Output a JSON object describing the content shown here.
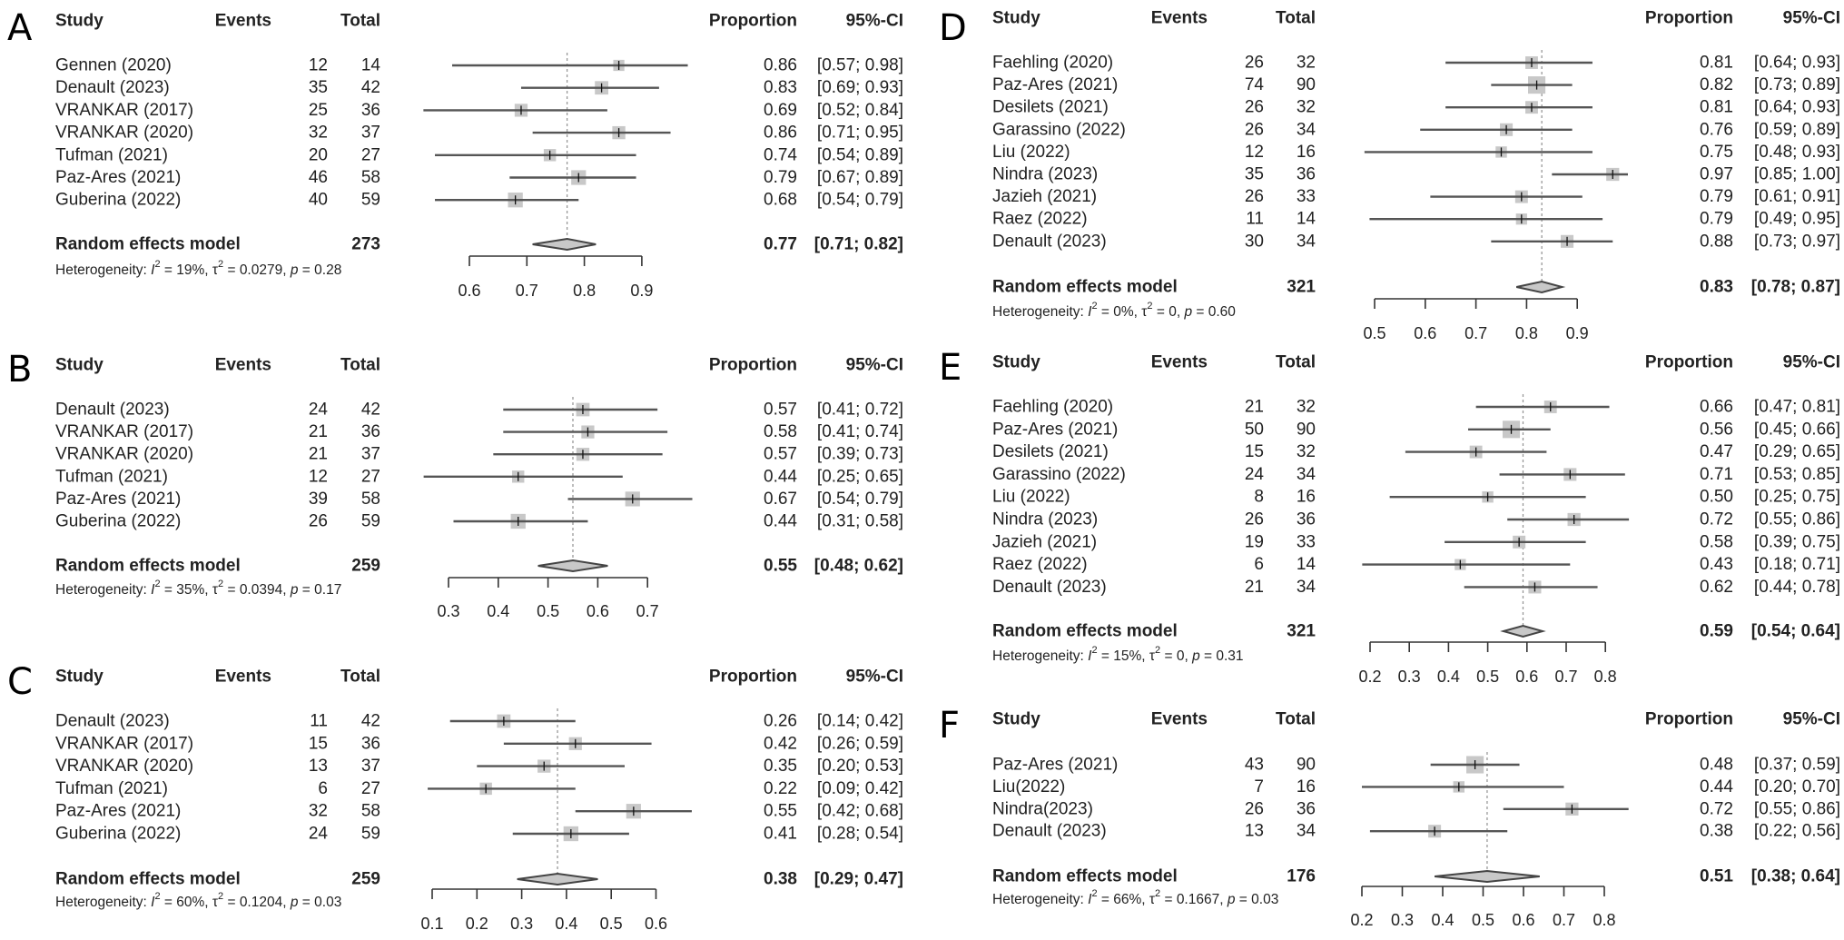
{
  "column_headers": {
    "study": "Study",
    "events": "Events",
    "total": "Total",
    "proportion": "Proportion",
    "ci": "95%-CI"
  },
  "random_effects_label": "Random effects model",
  "heterogeneity_label": "Heterogeneity:",
  "colors": {
    "square": "#c8c8c8",
    "ci_line": "#555555",
    "diamond_fill": "#c8c8c8",
    "diamond_stroke": "#444444",
    "reference_line": "#999999"
  },
  "chart_data": [
    {
      "type": "forest",
      "panel": "A",
      "xlim": [
        0.6,
        0.9
      ],
      "ticks": [
        "0.6",
        "0.7",
        "0.8",
        "0.9"
      ],
      "studies": [
        {
          "study": "Gennen (2020)",
          "events": "12",
          "total": "14",
          "proportion": "0.86",
          "ci": "[0.57; 0.98]"
        },
        {
          "study": "Denault (2023)",
          "events": "35",
          "total": "42",
          "proportion": "0.83",
          "ci": "[0.69; 0.93]"
        },
        {
          "study": "VRANKAR (2017)",
          "events": "25",
          "total": "36",
          "proportion": "0.69",
          "ci": "[0.52; 0.84]"
        },
        {
          "study": "VRANKAR (2020)",
          "events": "32",
          "total": "37",
          "proportion": "0.86",
          "ci": "[0.71; 0.95]"
        },
        {
          "study": "Tufman (2021)",
          "events": "20",
          "total": "27",
          "proportion": "0.74",
          "ci": "[0.54; 0.89]"
        },
        {
          "study": "Paz-Ares (2021)",
          "events": "46",
          "total": "58",
          "proportion": "0.79",
          "ci": "[0.67; 0.89]"
        },
        {
          "study": "Guberina (2022)",
          "events": "40",
          "total": "59",
          "proportion": "0.68",
          "ci": "[0.54; 0.79]"
        }
      ],
      "random_effects": {
        "total": "273",
        "proportion": "0.77",
        "ci": "[0.71; 0.82]"
      },
      "heterogeneity": {
        "i2": "19%",
        "tau2": "0.0279",
        "p": "0.28"
      }
    },
    {
      "type": "forest",
      "panel": "B",
      "xlim": [
        0.3,
        0.7
      ],
      "ticks": [
        "0.3",
        "0.4",
        "0.5",
        "0.6",
        "0.7"
      ],
      "studies": [
        {
          "study": "Denault (2023)",
          "events": "24",
          "total": "42",
          "proportion": "0.57",
          "ci": "[0.41; 0.72]"
        },
        {
          "study": "VRANKAR (2017)",
          "events": "21",
          "total": "36",
          "proportion": "0.58",
          "ci": "[0.41; 0.74]"
        },
        {
          "study": "VRANKAR (2020)",
          "events": "21",
          "total": "37",
          "proportion": "0.57",
          "ci": "[0.39; 0.73]"
        },
        {
          "study": "Tufman (2021)",
          "events": "12",
          "total": "27",
          "proportion": "0.44",
          "ci": "[0.25; 0.65]"
        },
        {
          "study": "Paz-Ares (2021)",
          "events": "39",
          "total": "58",
          "proportion": "0.67",
          "ci": "[0.54; 0.79]"
        },
        {
          "study": "Guberina (2022)",
          "events": "26",
          "total": "59",
          "proportion": "0.44",
          "ci": "[0.31; 0.58]"
        }
      ],
      "random_effects": {
        "total": "259",
        "proportion": "0.55",
        "ci": "[0.48; 0.62]"
      },
      "heterogeneity": {
        "i2": "35%",
        "tau2": "0.0394",
        "p": "0.17"
      }
    },
    {
      "type": "forest",
      "panel": "C",
      "xlim": [
        0.1,
        0.6
      ],
      "ticks": [
        "0.1",
        "0.2",
        "0.3",
        "0.4",
        "0.5",
        "0.6"
      ],
      "studies": [
        {
          "study": "Denault (2023)",
          "events": "11",
          "total": "42",
          "proportion": "0.26",
          "ci": "[0.14; 0.42]"
        },
        {
          "study": "VRANKAR (2017)",
          "events": "15",
          "total": "36",
          "proportion": "0.42",
          "ci": "[0.26; 0.59]"
        },
        {
          "study": "VRANKAR (2020)",
          "events": "13",
          "total": "37",
          "proportion": "0.35",
          "ci": "[0.20; 0.53]"
        },
        {
          "study": "Tufman (2021)",
          "events": "6",
          "total": "27",
          "proportion": "0.22",
          "ci": "[0.09; 0.42]"
        },
        {
          "study": "Paz-Ares (2021)",
          "events": "32",
          "total": "58",
          "proportion": "0.55",
          "ci": "[0.42; 0.68]"
        },
        {
          "study": "Guberina (2022)",
          "events": "24",
          "total": "59",
          "proportion": "0.41",
          "ci": "[0.28; 0.54]"
        }
      ],
      "random_effects": {
        "total": "259",
        "proportion": "0.38",
        "ci": "[0.29; 0.47]"
      },
      "heterogeneity": {
        "i2": "60%",
        "tau2": "0.1204",
        "p": "0.03"
      }
    },
    {
      "type": "forest",
      "panel": "D",
      "xlim": [
        0.5,
        0.9
      ],
      "ticks": [
        "0.5",
        "0.6",
        "0.7",
        "0.8",
        "0.9"
      ],
      "studies": [
        {
          "study": "Faehling (2020)",
          "events": "26",
          "total": "32",
          "proportion": "0.81",
          "ci": "[0.64; 0.93]"
        },
        {
          "study": "Paz-Ares (2021)",
          "events": "74",
          "total": "90",
          "proportion": "0.82",
          "ci": "[0.73; 0.89]"
        },
        {
          "study": "Desilets (2021)",
          "events": "26",
          "total": "32",
          "proportion": "0.81",
          "ci": "[0.64; 0.93]"
        },
        {
          "study": "Garassino (2022)",
          "events": "26",
          "total": "34",
          "proportion": "0.76",
          "ci": "[0.59; 0.89]"
        },
        {
          "study": "Liu (2022)",
          "events": "12",
          "total": "16",
          "proportion": "0.75",
          "ci": "[0.48; 0.93]"
        },
        {
          "study": "Nindra (2023)",
          "events": "35",
          "total": "36",
          "proportion": "0.97",
          "ci": "[0.85; 1.00]"
        },
        {
          "study": "Jazieh (2021)",
          "events": "26",
          "total": "33",
          "proportion": "0.79",
          "ci": "[0.61; 0.91]"
        },
        {
          "study": "Raez (2022)",
          "events": "11",
          "total": "14",
          "proportion": "0.79",
          "ci": "[0.49; 0.95]"
        },
        {
          "study": "Denault (2023)",
          "events": "30",
          "total": "34",
          "proportion": "0.88",
          "ci": "[0.73; 0.97]"
        }
      ],
      "random_effects": {
        "total": "321",
        "proportion": "0.83",
        "ci": "[0.78; 0.87]"
      },
      "heterogeneity": {
        "i2": "0%",
        "tau2": "0",
        "p": "0.60"
      }
    },
    {
      "type": "forest",
      "panel": "E",
      "xlim": [
        0.2,
        0.8
      ],
      "ticks": [
        "0.2",
        "0.3",
        "0.4",
        "0.5",
        "0.6",
        "0.7",
        "0.8"
      ],
      "studies": [
        {
          "study": "Faehling (2020)",
          "events": "21",
          "total": "32",
          "proportion": "0.66",
          "ci": "[0.47; 0.81]"
        },
        {
          "study": "Paz-Ares (2021)",
          "events": "50",
          "total": "90",
          "proportion": "0.56",
          "ci": "[0.45; 0.66]"
        },
        {
          "study": "Desilets (2021)",
          "events": "15",
          "total": "32",
          "proportion": "0.47",
          "ci": "[0.29; 0.65]"
        },
        {
          "study": "Garassino (2022)",
          "events": "24",
          "total": "34",
          "proportion": "0.71",
          "ci": "[0.53; 0.85]"
        },
        {
          "study": "Liu (2022)",
          "events": "8",
          "total": "16",
          "proportion": "0.50",
          "ci": "[0.25; 0.75]"
        },
        {
          "study": "Nindra (2023)",
          "events": "26",
          "total": "36",
          "proportion": "0.72",
          "ci": "[0.55; 0.86]"
        },
        {
          "study": "Jazieh (2021)",
          "events": "19",
          "total": "33",
          "proportion": "0.58",
          "ci": "[0.39; 0.75]"
        },
        {
          "study": "Raez (2022)",
          "events": "6",
          "total": "14",
          "proportion": "0.43",
          "ci": "[0.18; 0.71]"
        },
        {
          "study": "Denault (2023)",
          "events": "21",
          "total": "34",
          "proportion": "0.62",
          "ci": "[0.44; 0.78]"
        }
      ],
      "random_effects": {
        "total": "321",
        "proportion": "0.59",
        "ci": "[0.54; 0.64]"
      },
      "heterogeneity": {
        "i2": "15%",
        "tau2": "0",
        "p": "0.31"
      }
    },
    {
      "type": "forest",
      "panel": "F",
      "xlim": [
        0.2,
        0.8
      ],
      "ticks": [
        "0.2",
        "0.3",
        "0.4",
        "0.5",
        "0.6",
        "0.7",
        "0.8"
      ],
      "studies": [
        {
          "study": "Paz-Ares (2021)",
          "events": "43",
          "total": "90",
          "proportion": "0.48",
          "ci": "[0.37; 0.59]"
        },
        {
          "study": "Liu(2022)",
          "events": "7",
          "total": "16",
          "proportion": "0.44",
          "ci": "[0.20; 0.70]"
        },
        {
          "study": "Nindra(2023)",
          "events": "26",
          "total": "36",
          "proportion": "0.72",
          "ci": "[0.55; 0.86]"
        },
        {
          "study": "Denault (2023)",
          "events": "13",
          "total": "34",
          "proportion": "0.38",
          "ci": "[0.22; 0.56]"
        }
      ],
      "random_effects": {
        "total": "176",
        "proportion": "0.51",
        "ci": "[0.38; 0.64]"
      },
      "heterogeneity": {
        "i2": "66%",
        "tau2": "0.1667",
        "p": "0.03"
      }
    }
  ]
}
